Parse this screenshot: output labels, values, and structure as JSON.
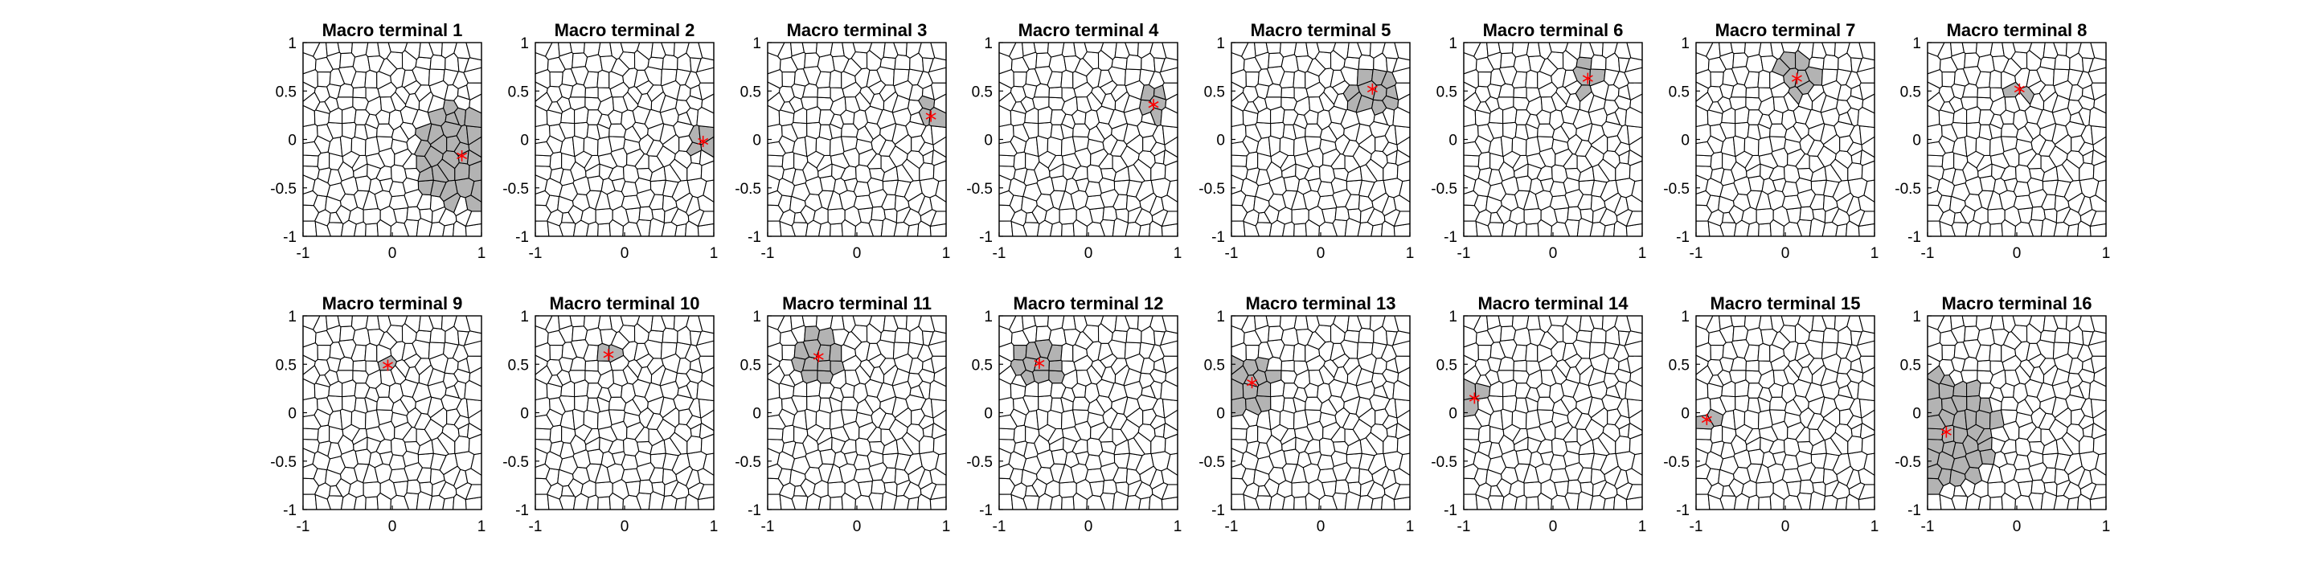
{
  "chart_data": {
    "type": "scatter",
    "description_grid": "2 rows x 8 panels, Voronoi partitions of [-1,1]^2",
    "xlim": [
      -1,
      1
    ],
    "ylim": [
      -1,
      1
    ],
    "xticks": [
      "-1",
      "0",
      "1"
    ],
    "yticks": [
      "1",
      "0.5",
      "0",
      "-0.5",
      "-1"
    ],
    "colors": {
      "cell_fill": "#ffffff",
      "selected_fill": "#b3b3b3",
      "edge": "#000000",
      "marker": "#ff0000"
    },
    "panels": [
      {
        "title": "Macro terminal 1",
        "terminal": [
          0.78,
          -0.17
        ],
        "support_radius": 0.52
      },
      {
        "title": "Macro terminal 2",
        "terminal": [
          0.88,
          -0.02
        ],
        "support_radius": 0.13
      },
      {
        "title": "Macro terminal 3",
        "terminal": [
          0.83,
          0.24
        ],
        "support_radius": 0.14
      },
      {
        "title": "Macro terminal 4",
        "terminal": [
          0.73,
          0.36
        ],
        "support_radius": 0.15
      },
      {
        "title": "Macro terminal 5",
        "terminal": [
          0.58,
          0.52
        ],
        "support_radius": 0.27
      },
      {
        "title": "Macro terminal 6",
        "terminal": [
          0.39,
          0.63
        ],
        "support_radius": 0.16
      },
      {
        "title": "Macro terminal 7",
        "terminal": [
          0.13,
          0.63
        ],
        "support_radius": 0.22
      },
      {
        "title": "Macro terminal 8",
        "terminal": [
          0.03,
          0.52
        ],
        "support_radius": 0.1
      },
      {
        "title": "Macro terminal 9",
        "terminal": [
          -0.05,
          0.49
        ],
        "support_radius": 0.12
      },
      {
        "title": "Macro terminal 10",
        "terminal": [
          -0.18,
          0.6
        ],
        "support_radius": 0.11
      },
      {
        "title": "Macro terminal 11",
        "terminal": [
          -0.43,
          0.58
        ],
        "support_radius": 0.3
      },
      {
        "title": "Macro terminal 12",
        "terminal": [
          -0.55,
          0.51
        ],
        "support_radius": 0.27
      },
      {
        "title": "Macro terminal 13",
        "terminal": [
          -0.77,
          0.31
        ],
        "support_radius": 0.28
      },
      {
        "title": "Macro terminal 14",
        "terminal": [
          -0.88,
          0.15
        ],
        "support_radius": 0.14
      },
      {
        "title": "Macro terminal 15",
        "terminal": [
          -0.88,
          -0.07
        ],
        "support_radius": 0.12
      },
      {
        "title": "Macro terminal 16",
        "terminal": [
          -0.79,
          -0.2
        ],
        "support_radius": 0.58
      }
    ]
  }
}
